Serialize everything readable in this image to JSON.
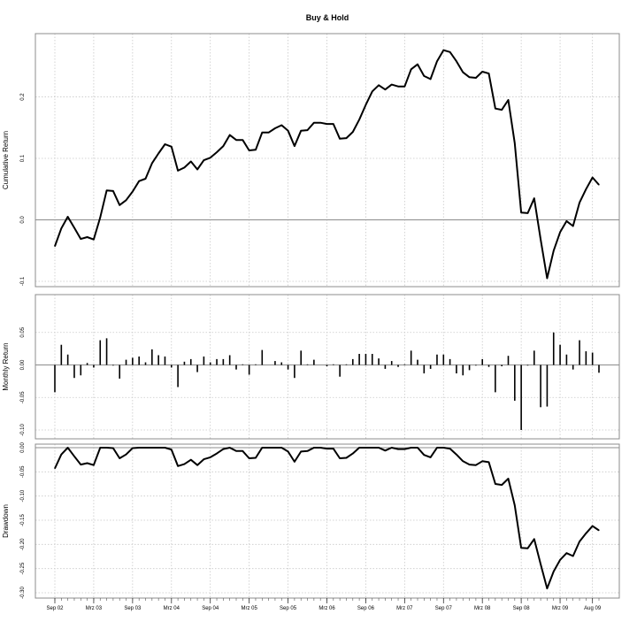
{
  "chart_data": {
    "type": "line",
    "title": "Buy & Hold",
    "grid": true,
    "x_ticks": [
      "Sep 02",
      "Mrz 03",
      "Sep 03",
      "Mrz 04",
      "Sep 04",
      "Mrz 05",
      "Sep 05",
      "Mrz 06",
      "Sep 06",
      "Mrz 07",
      "Sep 07",
      "Mrz 08",
      "Sep 08",
      "Mrz 09",
      "Aug 09"
    ],
    "panels": [
      {
        "ylabel": "Cumulative Return",
        "ylim": [
          -0.1,
          0.29
        ],
        "yticks": [
          -0.1,
          0.0,
          0.1,
          0.2
        ],
        "ytick_labels": [
          "-0.1",
          "0.0",
          "0.1",
          "0.2"
        ],
        "zero_line": true,
        "series": [
          {
            "type": "line",
            "values": [
              -0.043,
              -0.014,
              0.005,
              -0.013,
              -0.031,
              -0.028,
              -0.032,
              0.004,
              0.048,
              0.047,
              0.024,
              0.032,
              0.046,
              0.063,
              0.067,
              0.092,
              0.108,
              0.123,
              0.119,
              0.08,
              0.085,
              0.095,
              0.082,
              0.097,
              0.101,
              0.11,
              0.12,
              0.138,
              0.13,
              0.13,
              0.113,
              0.114,
              0.142,
              0.142,
              0.149,
              0.154,
              0.145,
              0.12,
              0.145,
              0.146,
              0.158,
              0.158,
              0.156,
              0.156,
              0.132,
              0.133,
              0.143,
              0.163,
              0.187,
              0.209,
              0.219,
              0.212,
              0.22,
              0.217,
              0.217,
              0.245,
              0.253,
              0.234,
              0.229,
              0.258,
              0.276,
              0.273,
              0.258,
              0.24,
              0.232,
              0.231,
              0.241,
              0.238,
              0.181,
              0.179,
              0.195,
              0.125,
              0.012,
              0.011,
              0.035,
              -0.032,
              -0.095,
              -0.05,
              -0.02,
              -0.002,
              -0.01,
              0.028,
              0.05,
              0.069,
              0.057
            ]
          }
        ]
      },
      {
        "ylabel": "Monthly Return",
        "ylim": [
          -0.1,
          0.1
        ],
        "yticks": [
          -0.1,
          -0.05,
          0.0,
          0.05
        ],
        "ytick_labels": [
          "-0.10",
          "-0.05",
          "0.00",
          "0.05"
        ],
        "zero_line": true,
        "series": [
          {
            "type": "bar",
            "values": [
              -0.042,
              0.031,
              0.016,
              -0.02,
              -0.016,
              0.003,
              -0.004,
              0.038,
              0.041,
              -0.001,
              -0.021,
              0.008,
              0.011,
              0.013,
              0.004,
              0.024,
              0.015,
              0.013,
              -0.004,
              -0.034,
              0.005,
              0.009,
              -0.011,
              0.013,
              0.004,
              0.009,
              0.009,
              0.015,
              -0.007,
              0.001,
              -0.015,
              0.001,
              0.023,
              0.0,
              0.006,
              0.004,
              -0.007,
              -0.02,
              0.022,
              0.001,
              0.008,
              0.0,
              -0.002,
              0.001,
              -0.018,
              0.001,
              0.009,
              0.017,
              0.017,
              0.017,
              0.01,
              -0.006,
              0.006,
              -0.003,
              0.001,
              0.022,
              0.008,
              -0.013,
              -0.006,
              0.016,
              0.016,
              0.009,
              -0.013,
              -0.016,
              -0.008,
              -0.001,
              0.009,
              -0.003,
              -0.042,
              -0.002,
              0.014,
              -0.055,
              -0.1,
              -0.001,
              0.022,
              -0.065,
              -0.064,
              0.05,
              0.031,
              0.016,
              -0.007,
              0.038,
              0.021,
              0.019,
              -0.012
            ]
          }
        ]
      },
      {
        "ylabel": "Drawdown",
        "ylim": [
          -0.3,
          0.0
        ],
        "yticks": [
          -0.3,
          -0.25,
          -0.2,
          -0.15,
          -0.1,
          -0.05,
          0.0
        ],
        "ytick_labels": [
          "-0.30",
          "-0.25",
          "-0.20",
          "-0.15",
          "-0.10",
          "-0.05",
          "0.00"
        ],
        "zero_line": true,
        "series": [
          {
            "type": "line",
            "values": [
              -0.043,
              -0.014,
              0.0,
              -0.018,
              -0.035,
              -0.032,
              -0.036,
              0.0,
              0.0,
              -0.001,
              -0.022,
              -0.014,
              -0.001,
              0.0,
              0.0,
              0.0,
              0.0,
              0.0,
              -0.004,
              -0.038,
              -0.034,
              -0.025,
              -0.036,
              -0.024,
              -0.02,
              -0.012,
              -0.003,
              0.0,
              -0.007,
              -0.007,
              -0.022,
              -0.021,
              0.0,
              0.0,
              0.0,
              0.0,
              -0.008,
              -0.029,
              -0.008,
              -0.007,
              0.0,
              0.0,
              -0.002,
              -0.002,
              -0.022,
              -0.021,
              -0.012,
              0.0,
              0.0,
              0.0,
              0.0,
              -0.006,
              0.0,
              -0.003,
              -0.003,
              0.0,
              0.0,
              -0.015,
              -0.02,
              0.0,
              0.0,
              -0.002,
              -0.014,
              -0.028,
              -0.035,
              -0.036,
              -0.028,
              -0.03,
              -0.075,
              -0.077,
              -0.064,
              -0.119,
              -0.207,
              -0.208,
              -0.189,
              -0.241,
              -0.291,
              -0.256,
              -0.232,
              -0.218,
              -0.224,
              -0.194,
              -0.177,
              -0.162,
              -0.171
            ]
          }
        ]
      }
    ]
  }
}
